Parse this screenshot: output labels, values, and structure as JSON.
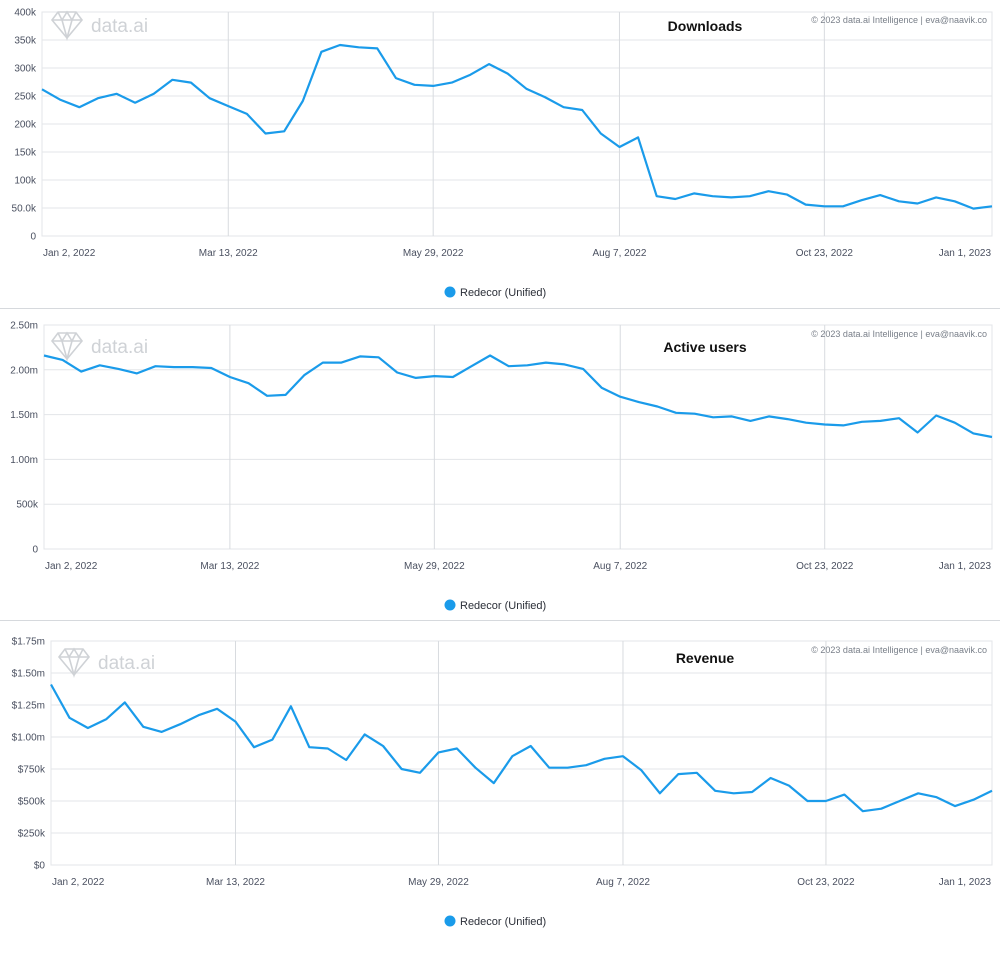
{
  "brand": "data.ai",
  "copyright": "© 2023 data.ai Intelligence | eva@naavik.co",
  "accent_color": "#1a9bea",
  "grid_color": "#e3e5e8",
  "x_tick_labels": [
    "Jan 2, 2022",
    "Mar 13, 2022",
    "May 29, 2022",
    "Aug 7, 2022",
    "Oct 23, 2022",
    "Jan 1, 2023"
  ],
  "chart_data": [
    {
      "type": "line",
      "title": "Downloads",
      "x_start": "2022-01-02",
      "x_interval": "1 week",
      "y_ticks": [
        "0",
        "50.0k",
        "100k",
        "150k",
        "200k",
        "250k",
        "300k",
        "350k",
        "400k"
      ],
      "ylim": [
        0,
        400000
      ],
      "grid": true,
      "legend_position": "bottom-center",
      "series": [
        {
          "name": "Redecor (Unified)",
          "color": "#1a9bea",
          "values": [
            262000,
            243000,
            230000,
            246000,
            254000,
            238000,
            254000,
            279000,
            274000,
            246000,
            232000,
            218000,
            183000,
            187000,
            241000,
            329000,
            341000,
            337000,
            335000,
            282000,
            270000,
            268000,
            274000,
            288000,
            307000,
            290000,
            263000,
            248000,
            230000,
            225000,
            183000,
            159000,
            176000,
            71000,
            66000,
            76000,
            71000,
            69000,
            71000,
            80000,
            74000,
            56000,
            53000,
            53000,
            64000,
            73000,
            62000,
            58000,
            69000,
            62000,
            49000,
            53000
          ]
        }
      ]
    },
    {
      "type": "line",
      "title": "Active users",
      "x_start": "2022-01-02",
      "x_interval": "1 week",
      "y_ticks": [
        "0",
        "500k",
        "1.00m",
        "1.50m",
        "2.00m",
        "2.50m"
      ],
      "ylim": [
        0,
        2500000
      ],
      "grid": true,
      "legend_position": "bottom-center",
      "series": [
        {
          "name": "Redecor (Unified)",
          "color": "#1a9bea",
          "values": [
            2160000,
            2110000,
            1980000,
            2050000,
            2010000,
            1960000,
            2040000,
            2030000,
            2030000,
            2020000,
            1920000,
            1850000,
            1710000,
            1720000,
            1940000,
            2080000,
            2080000,
            2150000,
            2140000,
            1970000,
            1910000,
            1930000,
            1920000,
            2040000,
            2160000,
            2040000,
            2050000,
            2080000,
            2060000,
            2010000,
            1800000,
            1700000,
            1640000,
            1590000,
            1520000,
            1510000,
            1470000,
            1480000,
            1430000,
            1480000,
            1450000,
            1410000,
            1390000,
            1380000,
            1420000,
            1430000,
            1460000,
            1300000,
            1490000,
            1410000,
            1290000,
            1250000
          ]
        }
      ]
    },
    {
      "type": "line",
      "title": "Revenue",
      "x_start": "2022-01-02",
      "x_interval": "1 week",
      "y_ticks": [
        "$0",
        "$250k",
        "$500k",
        "$750k",
        "$1.00m",
        "$1.25m",
        "$1.50m",
        "$1.75m"
      ],
      "ylim": [
        0,
        1750000
      ],
      "grid": true,
      "legend_position": "bottom-center",
      "series": [
        {
          "name": "Redecor (Unified)",
          "color": "#1a9bea",
          "values": [
            1410000,
            1150000,
            1070000,
            1140000,
            1270000,
            1080000,
            1040000,
            1100000,
            1170000,
            1220000,
            1120000,
            920000,
            980000,
            1240000,
            920000,
            910000,
            820000,
            1020000,
            930000,
            750000,
            720000,
            880000,
            910000,
            760000,
            640000,
            850000,
            930000,
            760000,
            760000,
            780000,
            830000,
            850000,
            740000,
            560000,
            710000,
            720000,
            580000,
            560000,
            570000,
            680000,
            620000,
            500000,
            500000,
            550000,
            420000,
            440000,
            500000,
            560000,
            530000,
            460000,
            510000,
            580000
          ]
        }
      ]
    }
  ],
  "legend": {
    "label": "Redecor (Unified)"
  }
}
